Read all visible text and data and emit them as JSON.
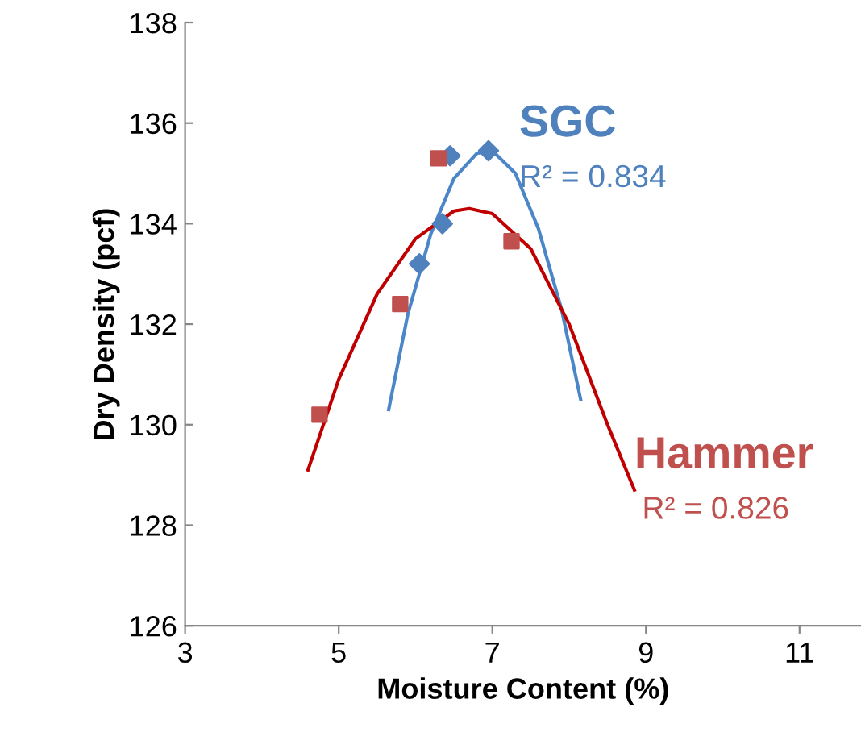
{
  "chart_data": {
    "type": "scatter",
    "xlabel": "Moisture Content (%)",
    "ylabel": "Dry Density (pcf)",
    "xlim": [
      3,
      11.8
    ],
    "xticks": [
      3,
      5,
      7,
      9,
      11
    ],
    "ylim": [
      126,
      138
    ],
    "yticks": [
      126,
      128,
      130,
      132,
      134,
      136,
      138
    ],
    "grid": false,
    "legend": false,
    "series": [
      {
        "name": "SGC",
        "marker": "diamond",
        "color": "#4f81bd",
        "x": [
          6.05,
          6.35,
          6.45,
          6.95
        ],
        "values": [
          133.2,
          134.0,
          135.35,
          135.45
        ]
      },
      {
        "name": "Hammer",
        "marker": "square",
        "color": "#c0504d",
        "x": [
          4.75,
          5.8,
          6.3,
          7.25
        ],
        "values": [
          130.2,
          132.4,
          135.3,
          133.65
        ]
      },
      {
        "type": "line",
        "marker": "none",
        "color": "#4a86c8",
        "x": [
          5.65,
          5.9,
          6.2,
          6.5,
          6.8,
          7.0,
          7.3,
          7.6,
          7.9,
          8.15
        ],
        "values": [
          130.3,
          132.2,
          133.8,
          134.9,
          135.4,
          135.45,
          135.0,
          133.9,
          132.3,
          130.5
        ]
      },
      {
        "type": "line",
        "marker": "none",
        "color": "#c00000",
        "x": [
          4.6,
          5.0,
          5.5,
          6.0,
          6.5,
          6.7,
          7.0,
          7.5,
          8.0,
          8.5,
          8.85
        ],
        "values": [
          129.1,
          130.9,
          132.6,
          133.7,
          134.25,
          134.3,
          134.2,
          133.5,
          132.0,
          130.0,
          128.7
        ]
      }
    ],
    "annotations": [
      "R² = 0.834",
      "R² = 0.826"
    ]
  }
}
